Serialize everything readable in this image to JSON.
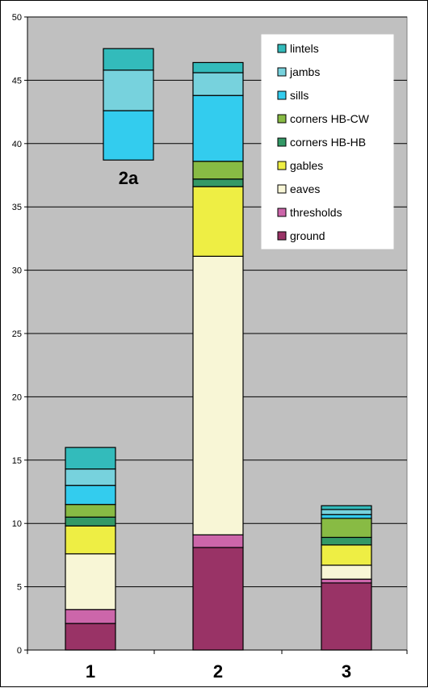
{
  "chart_data": {
    "type": "bar",
    "stacked": true,
    "categories": [
      "1",
      "2",
      "3"
    ],
    "ylim": [
      0,
      50
    ],
    "yticks": [
      0,
      5,
      10,
      15,
      20,
      25,
      30,
      35,
      40,
      45,
      50
    ],
    "grid": true,
    "plot_background": "#c0c0c0",
    "legend_placement": "top-right",
    "series": [
      {
        "name": "ground",
        "color": "#993366",
        "values": [
          2.1,
          8.1,
          5.3
        ]
      },
      {
        "name": "thresholds",
        "color": "#cc66aa",
        "values": [
          1.1,
          1.0,
          0.3
        ]
      },
      {
        "name": "eaves",
        "color": "#f8f6d6",
        "values": [
          4.4,
          22.0,
          1.1
        ]
      },
      {
        "name": "gables",
        "color": "#eeee44",
        "values": [
          2.2,
          5.5,
          1.6
        ]
      },
      {
        "name": "corners HB-HB",
        "color": "#339966",
        "values": [
          0.7,
          0.6,
          0.6
        ]
      },
      {
        "name": "corners HB-CW",
        "color": "#88bb44",
        "values": [
          1.0,
          1.4,
          1.5
        ]
      },
      {
        "name": "sills",
        "color": "#33ccee",
        "values": [
          1.5,
          5.2,
          0.3
        ]
      },
      {
        "name": "jambs",
        "color": "#77d2dd",
        "values": [
          1.3,
          1.8,
          0.4
        ]
      },
      {
        "name": "lintels",
        "color": "#33bbbb",
        "values": [
          1.7,
          0.8,
          0.3
        ]
      }
    ],
    "inset": {
      "label": "2a",
      "base": 38.7,
      "segments": [
        {
          "series": "sills",
          "value": 3.9
        },
        {
          "series": "jambs",
          "value": 3.2
        },
        {
          "series": "lintels",
          "value": 1.7
        }
      ]
    }
  }
}
